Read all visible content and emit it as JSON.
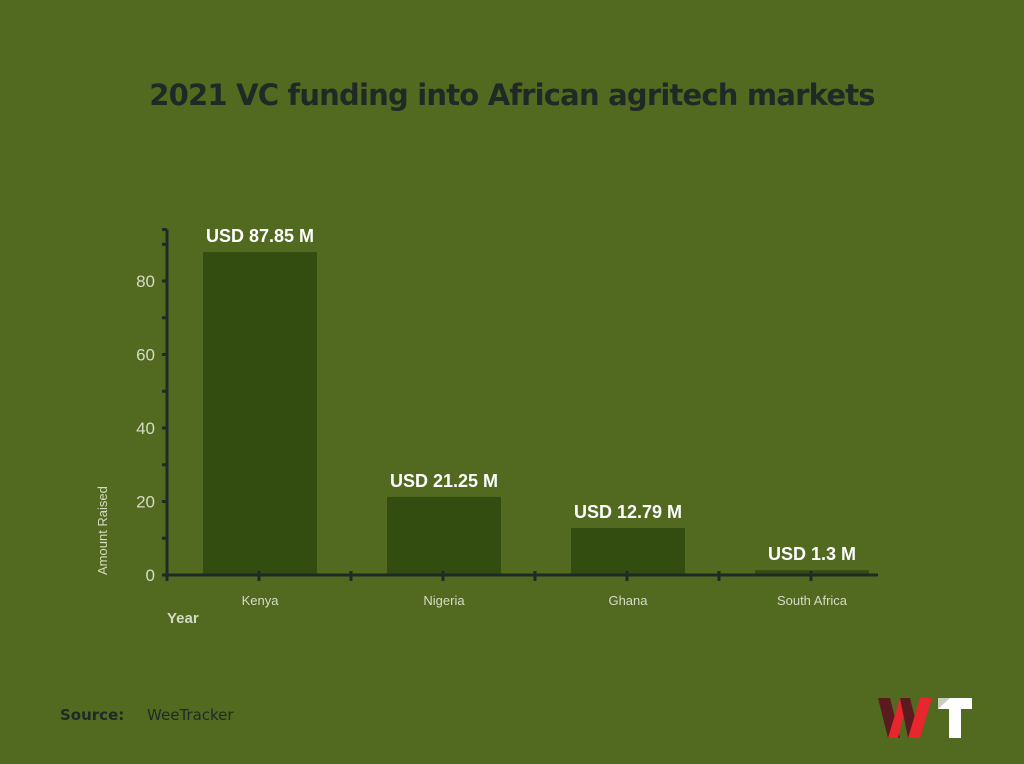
{
  "title": "2021 VC funding into African agritech markets",
  "source": {
    "label": "Source:",
    "value": "WeeTracker"
  },
  "logo": {
    "text": "WT",
    "colors": {
      "w_dark": "#5a1a1e",
      "w_red": "#e8262e",
      "t": "#ffffff"
    }
  },
  "colors": {
    "background": "#526920",
    "bar": "#334c10",
    "axis": "#1f2a26",
    "title": "#1f2a26",
    "label": "#d4dcc4",
    "value_label": "#ffffff"
  },
  "chart_data": {
    "type": "bar",
    "title": "2021 VC funding into African agritech markets",
    "xlabel": "Year",
    "ylabel": "Amount Raised",
    "categories": [
      "Kenya",
      "Nigeria",
      "Ghana",
      "South Africa"
    ],
    "values": [
      87.85,
      21.25,
      12.79,
      1.3
    ],
    "value_labels": [
      "USD 87.85 M",
      "USD 21.25 M",
      "USD 12.79 M",
      "USD 1.3 M"
    ],
    "unit": "USD M",
    "yticks": [
      0,
      20,
      40,
      60,
      80
    ],
    "ylim": [
      0,
      94
    ],
    "grid": false,
    "legend": null
  }
}
